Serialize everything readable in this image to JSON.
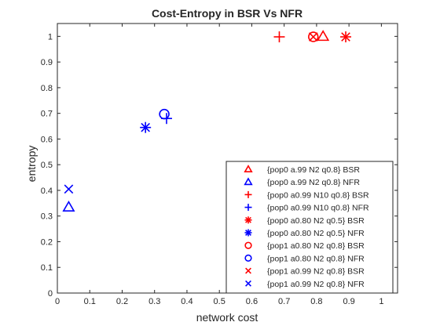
{
  "chart_data": {
    "type": "scatter",
    "title": "Cost-Entropy in BSR Vs NFR",
    "xlabel": "network cost",
    "ylabel": "entropy",
    "xlim": [
      0,
      1.05
    ],
    "ylim": [
      0,
      1.05
    ],
    "xticks": [
      0,
      0.1,
      0.2,
      0.3,
      0.4,
      0.5,
      0.6,
      0.7,
      0.8,
      0.9,
      1
    ],
    "yticks": [
      0,
      0.1,
      0.2,
      0.3,
      0.4,
      0.5,
      0.6,
      0.7,
      0.8,
      0.9,
      1
    ],
    "xtick_labels": [
      "0",
      "0.1",
      "0.2",
      "0.3",
      "0.4",
      "0.5",
      "0.6",
      "0.7",
      "0.8",
      "0.9",
      "1"
    ],
    "ytick_labels": [
      "0",
      "0.1",
      "0.2",
      "0.3",
      "0.4",
      "0.5",
      "0.6",
      "0.7",
      "0.8",
      "0.9",
      "1"
    ],
    "grid": false,
    "legend_position": "bottom-right",
    "series": [
      {
        "name": "{pop0 a.99 N2 q0.8} BSR",
        "marker": "triangle",
        "color": "#ff0000",
        "x": [
          0.82
        ],
        "y": [
          1.0
        ]
      },
      {
        "name": "{pop0 a.99 N2 q0.8} NFR",
        "marker": "triangle",
        "color": "#0000ff",
        "x": [
          0.035
        ],
        "y": [
          0.335
        ]
      },
      {
        "name": "{pop0 a0.99 N10 q0.8} BSR",
        "marker": "plus",
        "color": "#ff0000",
        "x": [
          0.685
        ],
        "y": [
          0.998
        ]
      },
      {
        "name": "{pop0 a0.99 N10 q0.8} NFR",
        "marker": "plus",
        "color": "#0000ff",
        "x": [
          0.337
        ],
        "y": [
          0.68
        ]
      },
      {
        "name": "{pop0 a0.80 N2 q0.5} BSR",
        "marker": "asterisk",
        "color": "#ff0000",
        "x": [
          0.89
        ],
        "y": [
          0.998
        ]
      },
      {
        "name": "{pop0 a0.80 N2 q0.5} NFR",
        "marker": "asterisk",
        "color": "#0000ff",
        "x": [
          0.272
        ],
        "y": [
          0.645
        ]
      },
      {
        "name": "{pop1 a0.80 N2 q0.8} BSR",
        "marker": "circle",
        "color": "#ff0000",
        "x": [
          0.79
        ],
        "y": [
          0.998
        ]
      },
      {
        "name": "{pop1 a0.80 N2 q0.8} NFR",
        "marker": "circle",
        "color": "#0000ff",
        "x": [
          0.33
        ],
        "y": [
          0.697
        ]
      },
      {
        "name": "{pop1 a0.99 N2 q0.8} BSR",
        "marker": "x",
        "color": "#ff0000",
        "x": [
          0.79
        ],
        "y": [
          0.998
        ]
      },
      {
        "name": "{pop1 a0.99 N2 q0.8} NFR",
        "marker": "x",
        "color": "#0000ff",
        "x": [
          0.035
        ],
        "y": [
          0.405
        ]
      }
    ]
  }
}
